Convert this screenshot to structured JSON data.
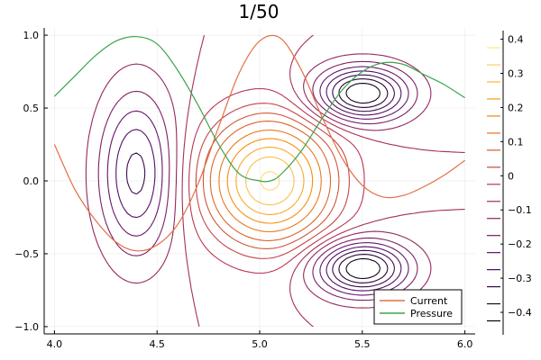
{
  "chart_data": {
    "type": "contour",
    "title": "1/50",
    "xlabel": "",
    "ylabel": "",
    "xlim": [
      3.95,
      6.05
    ],
    "ylim": [
      -1.05,
      1.05
    ],
    "x_ticks": [
      {
        "value": 4.0,
        "label": "4.0"
      },
      {
        "value": 4.5,
        "label": "4.5"
      },
      {
        "value": 5.0,
        "label": "5.0"
      },
      {
        "value": 5.5,
        "label": "5.5"
      },
      {
        "value": 6.0,
        "label": "6.0"
      }
    ],
    "y_ticks": [
      {
        "value": 1.0,
        "label": "1.0"
      },
      {
        "value": 0.5,
        "label": "0.5"
      },
      {
        "value": 0.0,
        "label": "0.0"
      },
      {
        "value": -0.5,
        "label": "−0.5"
      },
      {
        "value": -1.0,
        "label": "−1.0"
      }
    ],
    "grid": true,
    "colorbar": {
      "range": [
        -0.45,
        0.42
      ],
      "ticks": [
        {
          "value": 0.4,
          "label": "0.4"
        },
        {
          "value": 0.3,
          "label": "0.3"
        },
        {
          "value": 0.2,
          "label": "0.2"
        },
        {
          "value": 0.1,
          "label": "0.1"
        },
        {
          "value": 0.0,
          "label": "0"
        },
        {
          "value": -0.1,
          "label": "−0.1"
        },
        {
          "value": -0.2,
          "label": "−0.2"
        },
        {
          "value": -0.3,
          "label": "−0.3"
        },
        {
          "value": -0.4,
          "label": "−0.4"
        }
      ],
      "level_lines": [
        0.375,
        0.325,
        0.275,
        0.225,
        0.175,
        0.125,
        0.075,
        0.025,
        -0.025,
        -0.075,
        -0.125,
        -0.175,
        -0.225,
        -0.275,
        -0.325,
        -0.375,
        -0.425
      ]
    },
    "contour_levels": [
      -0.4,
      -0.35,
      -0.3,
      -0.25,
      -0.2,
      -0.15,
      -0.1,
      -0.06,
      -0.02,
      0.02,
      0.06,
      0.1,
      0.15,
      0.2,
      0.25,
      0.3,
      0.35,
      0.4
    ],
    "colors": {
      "low": "#000004",
      "mid_low": "#57106e",
      "mid": "#bc3754",
      "mid_high": "#f98e09",
      "high": "#fcffa4",
      "current": "#e26f46",
      "pressure": "#3da44d"
    },
    "series": [
      {
        "name": "Current",
        "color": "#e26f46",
        "x": [
          4.0,
          4.1,
          4.2,
          4.3,
          4.4,
          4.5,
          4.6,
          4.7,
          4.8,
          4.9,
          5.0,
          5.1,
          5.2,
          5.3,
          5.4,
          5.5,
          5.6,
          5.7,
          5.8,
          5.9,
          6.0
        ],
        "y": [
          0.25,
          -0.06,
          -0.27,
          -0.42,
          -0.48,
          -0.44,
          -0.3,
          -0.02,
          0.37,
          0.74,
          0.96,
          0.98,
          0.77,
          0.45,
          0.16,
          -0.03,
          -0.11,
          -0.1,
          -0.04,
          0.04,
          0.14
        ]
      },
      {
        "name": "Pressure",
        "color": "#3da44d",
        "x": [
          4.0,
          4.1,
          4.2,
          4.3,
          4.4,
          4.5,
          4.6,
          4.7,
          4.8,
          4.9,
          5.0,
          5.05,
          5.1,
          5.2,
          5.3,
          5.4,
          5.5,
          5.6,
          5.7,
          5.8,
          5.9,
          6.0
        ],
        "y": [
          0.58,
          0.72,
          0.86,
          0.96,
          0.99,
          0.94,
          0.76,
          0.52,
          0.25,
          0.05,
          0.0,
          0.0,
          0.04,
          0.2,
          0.42,
          0.62,
          0.75,
          0.81,
          0.8,
          0.73,
          0.66,
          0.57
        ]
      }
    ],
    "legend": {
      "position": "bottom-right",
      "entries": [
        "Current",
        "Pressure"
      ]
    }
  }
}
